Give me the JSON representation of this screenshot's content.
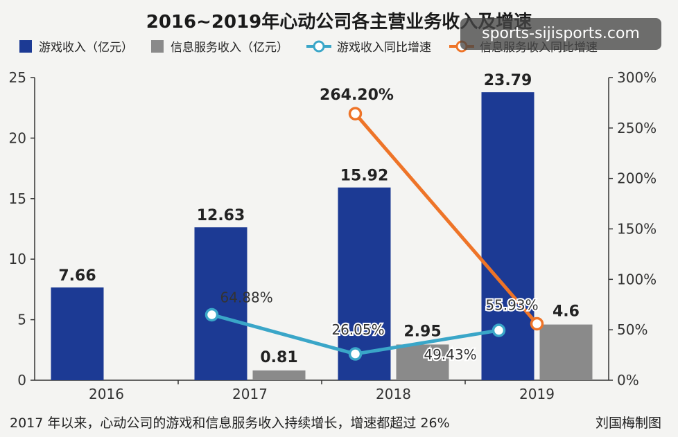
{
  "watermark": "sports-sijisports.com",
  "footer_note": "2017 年以来，心动公司的游戏和信息服务收入持续增长，增速都超过 26%",
  "credit": "刘国梅制图",
  "colors": {
    "game_bar": "#1c3a94",
    "info_bar": "#8a8a8a",
    "game_growth_line": "#3aa6c8",
    "info_growth_line": "#ee7428"
  },
  "chart_data": {
    "type": "bar",
    "title": "2016~2019年心动公司各主营业务收入及增速",
    "categories": [
      "2016",
      "2017",
      "2018",
      "2019"
    ],
    "ylim": [
      0,
      25
    ],
    "yticks": [
      "0",
      "5",
      "10",
      "15",
      "20",
      "25"
    ],
    "y2lim": [
      0,
      300
    ],
    "y2ticks": [
      "0%",
      "50%",
      "100%",
      "150%",
      "200%",
      "250%",
      "300%"
    ],
    "grid": false,
    "legend_position": "top",
    "series": [
      {
        "name": "游戏收入（亿元）",
        "kind": "bar",
        "axis": "left",
        "values": [
          7.66,
          12.63,
          15.92,
          23.79
        ],
        "labels": [
          "7.66",
          "12.63",
          "15.92",
          "23.79"
        ]
      },
      {
        "name": "信息服务收入（亿元）",
        "kind": "bar",
        "axis": "left",
        "values": [
          null,
          0.81,
          2.95,
          4.6
        ],
        "labels": [
          "",
          "0.81",
          "2.95",
          "4.6"
        ]
      },
      {
        "name": "游戏收入同比增速",
        "kind": "line",
        "axis": "right",
        "values": [
          null,
          64.88,
          26.05,
          49.43
        ],
        "labels": [
          "",
          "64.88%",
          "26.05%",
          "49.43%"
        ]
      },
      {
        "name": "信息服务收入同比增速",
        "kind": "line",
        "axis": "right",
        "values": [
          null,
          null,
          264.2,
          55.93
        ],
        "labels": [
          "",
          "",
          "264.20%",
          "55.93%"
        ]
      }
    ]
  }
}
